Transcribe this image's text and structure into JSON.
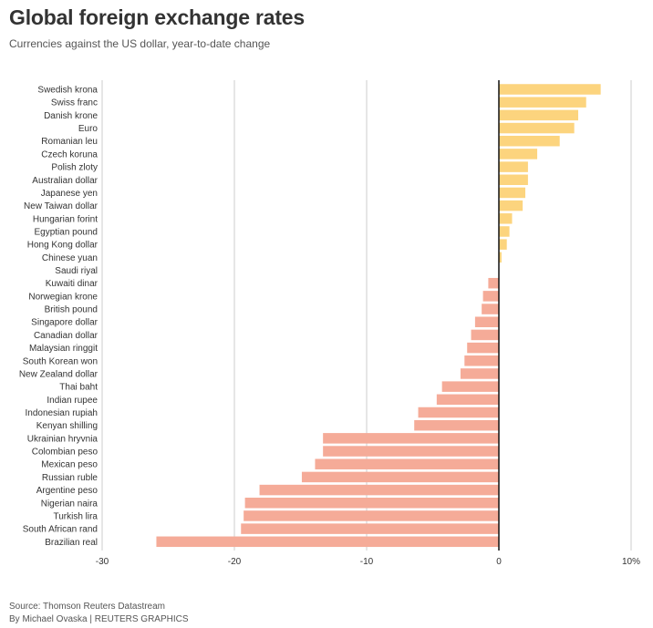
{
  "header": {
    "title": "Global foreign exchange rates",
    "subtitle": "Currencies against the US dollar, year-to-date change"
  },
  "footer": {
    "source": "Source: Thomson Reuters Datastream",
    "byline": "By Michael Ovaska | REUTERS GRAPHICS"
  },
  "colors": {
    "positive": "#fcd47e",
    "negative": "#f5ab98",
    "grid": "#cccccc",
    "zero_line": "#111111",
    "text": "#333333"
  },
  "chart_data": {
    "type": "bar",
    "orientation": "horizontal",
    "xlim": [
      -30,
      10
    ],
    "x_ticks": [
      -30,
      -20,
      -10,
      0,
      10
    ],
    "x_tick_labels": [
      "-30",
      "-20",
      "-10",
      "0",
      "10%"
    ],
    "grid": true,
    "categories": [
      "Swedish krona",
      "Swiss franc",
      "Danish krone",
      "Euro",
      "Romanian leu",
      "Czech koruna",
      "Polish zloty",
      "Australian dollar",
      "Japanese yen",
      "New Taiwan dollar",
      "Hungarian forint",
      "Egyptian pound",
      "Hong Kong dollar",
      "Chinese yuan",
      "Saudi riyal",
      "Kuwaiti dinar",
      "Norwegian krone",
      "British pound",
      "Singapore dollar",
      "Canadian dollar",
      "Malaysian ringgit",
      "South Korean won",
      "New Zealand dollar",
      "Thai baht",
      "Indian rupee",
      "Indonesian rupiah",
      "Kenyan shilling",
      "Ukrainian hryvnia",
      "Colombian peso",
      "Mexican peso",
      "Russian ruble",
      "Argentine peso",
      "Nigerian naira",
      "Turkish lira",
      "South African rand",
      "Brazilian real"
    ],
    "values": [
      7.7,
      6.6,
      6.0,
      5.7,
      4.6,
      2.9,
      2.2,
      2.2,
      2.0,
      1.8,
      1.0,
      0.8,
      0.6,
      0.2,
      0.0,
      -0.8,
      -1.2,
      -1.3,
      -1.8,
      -2.1,
      -2.4,
      -2.6,
      -2.9,
      -4.3,
      -4.7,
      -6.1,
      -6.4,
      -13.3,
      -13.3,
      -13.9,
      -14.9,
      -18.1,
      -19.2,
      -19.3,
      -19.5,
      -25.9
    ]
  }
}
